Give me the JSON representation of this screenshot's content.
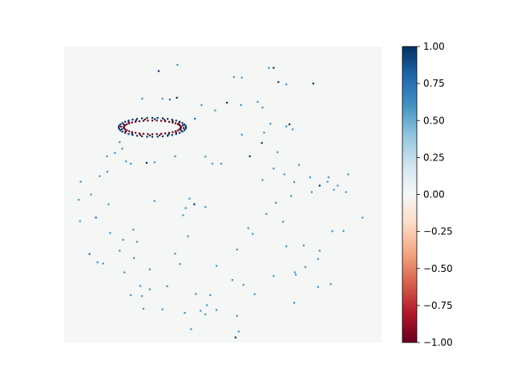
{
  "chart_data": {
    "type": "heatmap",
    "title": "",
    "xlabel": "",
    "ylabel": "",
    "axes_visible": false,
    "grid": false,
    "background_value": 0.0,
    "background_color": "#f5f6f6",
    "colormap": "RdBu",
    "colorbar": {
      "position": "right",
      "vmin": -1.0,
      "vmax": 1.0,
      "ticks": [
        -1.0,
        -0.75,
        -0.5,
        -0.25,
        0.0,
        0.25,
        0.5,
        0.75,
        1.0
      ],
      "tick_labels": [
        "−1.00",
        "−0.75",
        "−0.50",
        "−0.25",
        "0.00",
        "0.25",
        "0.50",
        "0.75",
        "1.00"
      ],
      "color_stops": [
        "#67001f",
        "#b2182b",
        "#d6604d",
        "#f4a582",
        "#fddbc7",
        "#f7f7f7",
        "#d1e5f0",
        "#92c5de",
        "#4393c3",
        "#2166ac",
        "#053061"
      ]
    },
    "cluster": {
      "description_free": true,
      "center": [
        0.278,
        0.273
      ],
      "rx": 0.106,
      "ry": 0.032,
      "outer_value": 1.0,
      "inner_value": -1.0
    },
    "points": [
      [
        0.298,
        0.083,
        1
      ],
      [
        0.357,
        0.062,
        0.6
      ],
      [
        0.66,
        0.072,
        1
      ],
      [
        0.645,
        0.072,
        0.6
      ],
      [
        0.535,
        0.103,
        0.6
      ],
      [
        0.56,
        0.105,
        0.6
      ],
      [
        0.675,
        0.12,
        1
      ],
      [
        0.7,
        0.128,
        0.6
      ],
      [
        0.785,
        0.125,
        1
      ],
      [
        0.31,
        0.176,
        0.6
      ],
      [
        0.246,
        0.176,
        0.6
      ],
      [
        0.333,
        0.179,
        0.8
      ],
      [
        0.355,
        0.173,
        1
      ],
      [
        0.61,
        0.187,
        0.6
      ],
      [
        0.513,
        0.19,
        1
      ],
      [
        0.476,
        0.216,
        0.6
      ],
      [
        0.433,
        0.198,
        0.6
      ],
      [
        0.557,
        0.198,
        0.6
      ],
      [
        0.625,
        0.206,
        0.6
      ],
      [
        0.412,
        0.244,
        0.8
      ],
      [
        0.65,
        0.261,
        0.6
      ],
      [
        0.71,
        0.263,
        1
      ],
      [
        0.7,
        0.27,
        0.6
      ],
      [
        0.63,
        0.291,
        0.6
      ],
      [
        0.72,
        0.28,
        0.6
      ],
      [
        0.56,
        0.298,
        0.6
      ],
      [
        0.623,
        0.326,
        1
      ],
      [
        0.672,
        0.357,
        0.6
      ],
      [
        0.175,
        0.323,
        0.6
      ],
      [
        0.183,
        0.345,
        0.6
      ],
      [
        0.16,
        0.36,
        0.6
      ],
      [
        0.195,
        0.388,
        0.6
      ],
      [
        0.135,
        0.371,
        0.6
      ],
      [
        0.136,
        0.423,
        0.6
      ],
      [
        0.112,
        0.438,
        0.6
      ],
      [
        0.26,
        0.393,
        1
      ],
      [
        0.35,
        0.371,
        0.6
      ],
      [
        0.445,
        0.372,
        0.6
      ],
      [
        0.285,
        0.391,
        0.6
      ],
      [
        0.21,
        0.396,
        0.6
      ],
      [
        0.467,
        0.396,
        0.6
      ],
      [
        0.585,
        0.371,
        1
      ],
      [
        0.495,
        0.396,
        0.6
      ],
      [
        0.775,
        0.442,
        0.6
      ],
      [
        0.74,
        0.4,
        0.6
      ],
      [
        0.694,
        0.432,
        0.6
      ],
      [
        0.833,
        0.442,
        0.6
      ],
      [
        0.66,
        0.412,
        0.6
      ],
      [
        0.83,
        0.457,
        0.6
      ],
      [
        0.625,
        0.451,
        0.6
      ],
      [
        0.725,
        0.458,
        0.6
      ],
      [
        0.805,
        0.47,
        1
      ],
      [
        0.862,
        0.47,
        0.6
      ],
      [
        0.888,
        0.492,
        0.6
      ],
      [
        0.85,
        0.484,
        0.6
      ],
      [
        0.715,
        0.505,
        0.6
      ],
      [
        0.78,
        0.492,
        0.6
      ],
      [
        0.895,
        0.432,
        0.6
      ],
      [
        0.052,
        0.457,
        0.6
      ],
      [
        0.085,
        0.5,
        0.6
      ],
      [
        0.046,
        0.518,
        0.6
      ],
      [
        0.14,
        0.533,
        0.6
      ],
      [
        0.395,
        0.514,
        0.6
      ],
      [
        0.285,
        0.522,
        0.6
      ],
      [
        0.41,
        0.533,
        1
      ],
      [
        0.383,
        0.546,
        0.6
      ],
      [
        0.445,
        0.542,
        0.6
      ],
      [
        0.375,
        0.57,
        0.6
      ],
      [
        0.667,
        0.528,
        0.6
      ],
      [
        0.637,
        0.566,
        0.6
      ],
      [
        0.58,
        0.614,
        0.6
      ],
      [
        0.594,
        0.633,
        0.6
      ],
      [
        0.69,
        0.592,
        0.6
      ],
      [
        0.845,
        0.624,
        0.6
      ],
      [
        0.94,
        0.578,
        0.6
      ],
      [
        0.88,
        0.623,
        0.6
      ],
      [
        0.05,
        0.59,
        0.6
      ],
      [
        0.1,
        0.578,
        0.8
      ],
      [
        0.145,
        0.63,
        0.6
      ],
      [
        0.23,
        0.66,
        0.6
      ],
      [
        0.186,
        0.653,
        0.6
      ],
      [
        0.218,
        0.619,
        0.6
      ],
      [
        0.39,
        0.641,
        0.6
      ],
      [
        0.545,
        0.686,
        0.6
      ],
      [
        0.7,
        0.675,
        0.6
      ],
      [
        0.755,
        0.672,
        0.6
      ],
      [
        0.8,
        0.718,
        0.6
      ],
      [
        0.805,
        0.69,
        0.6
      ],
      [
        0.76,
        0.745,
        0.6
      ],
      [
        0.08,
        0.701,
        0.8
      ],
      [
        0.105,
        0.729,
        0.6
      ],
      [
        0.123,
        0.733,
        0.6
      ],
      [
        0.175,
        0.69,
        0.6
      ],
      [
        0.22,
        0.715,
        0.6
      ],
      [
        0.365,
        0.735,
        0.6
      ],
      [
        0.35,
        0.7,
        0.6
      ],
      [
        0.48,
        0.741,
        0.6
      ],
      [
        0.53,
        0.789,
        0.6
      ],
      [
        0.19,
        0.763,
        0.6
      ],
      [
        0.27,
        0.753,
        0.6
      ],
      [
        0.727,
        0.763,
        0.6
      ],
      [
        0.73,
        0.771,
        0.6
      ],
      [
        0.66,
        0.775,
        0.6
      ],
      [
        0.84,
        0.803,
        0.6
      ],
      [
        0.8,
        0.812,
        0.6
      ],
      [
        0.24,
        0.809,
        0.6
      ],
      [
        0.27,
        0.82,
        0.6
      ],
      [
        0.325,
        0.81,
        0.6
      ],
      [
        0.21,
        0.84,
        0.6
      ],
      [
        0.245,
        0.843,
        0.6
      ],
      [
        0.415,
        0.836,
        0.6
      ],
      [
        0.46,
        0.84,
        0.6
      ],
      [
        0.565,
        0.805,
        0.6
      ],
      [
        0.6,
        0.837,
        0.6
      ],
      [
        0.725,
        0.866,
        0.6
      ],
      [
        0.25,
        0.886,
        0.6
      ],
      [
        0.31,
        0.888,
        0.6
      ],
      [
        0.45,
        0.874,
        0.6
      ],
      [
        0.48,
        0.89,
        0.6
      ],
      [
        0.38,
        0.9,
        0.6
      ],
      [
        0.445,
        0.905,
        0.6
      ],
      [
        0.545,
        0.91,
        0.6
      ],
      [
        0.4,
        0.955,
        0.6
      ],
      [
        0.55,
        0.963,
        0.6
      ],
      [
        0.54,
        0.983,
        1
      ],
      [
        0.43,
        0.893,
        0.6
      ]
    ]
  }
}
